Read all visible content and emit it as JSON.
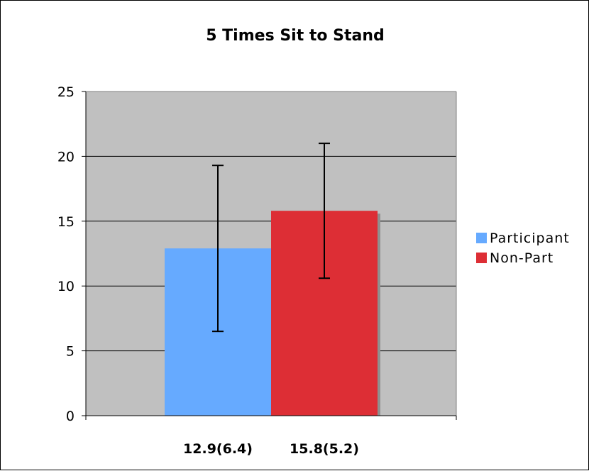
{
  "chart_data": {
    "type": "bar",
    "title": "5 Times Sit to Stand",
    "xlabel": "",
    "ylabel": "",
    "ylim": [
      0,
      25
    ],
    "yticks": [
      0,
      5,
      10,
      15,
      20,
      25
    ],
    "grid": true,
    "legend_position": "right",
    "plot_background": "#c0c0c0",
    "categories": [
      "12.9(6.4)",
      "15.8(5.2)"
    ],
    "series": [
      {
        "name": "Participant",
        "value": 12.9,
        "error": 6.4,
        "color": "#66aaff"
      },
      {
        "name": "Non-Part",
        "value": 15.8,
        "error": 5.2,
        "color": "#dd2e35"
      }
    ]
  }
}
